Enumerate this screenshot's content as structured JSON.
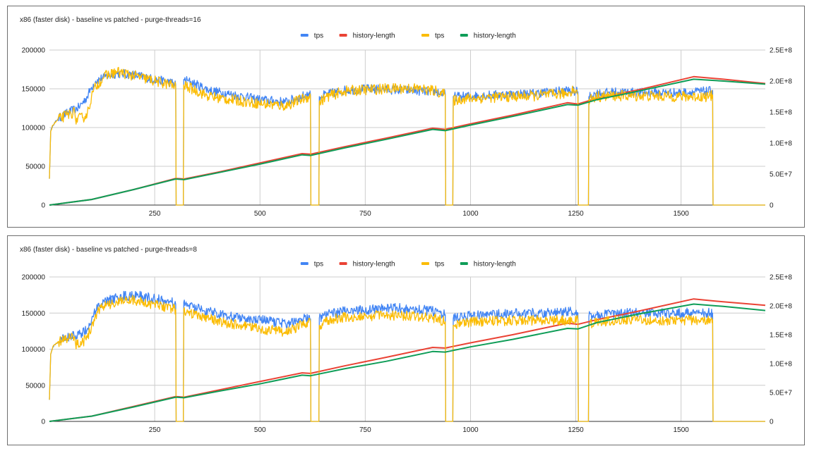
{
  "colors": {
    "tps_baseline": "#4285f4",
    "history_baseline": "#ea4335",
    "tps_patched": "#fbbc04",
    "history_patched": "#0f9d58",
    "grid": "#cccccc",
    "axis": "#333333",
    "text": "#222222"
  },
  "chart_data": [
    {
      "type": "line",
      "title": "x86 (faster disk) - baseline vs patched - purge-threads=16",
      "xlabel": "",
      "ylabel": "",
      "y2label": "",
      "xlim": [
        0,
        1700
      ],
      "ylim": [
        0,
        200000
      ],
      "y2lim": [
        0,
        250000000
      ],
      "x_ticks": [
        "250",
        "500",
        "750",
        "1000",
        "1250",
        "1500"
      ],
      "x_tick_values": [
        250,
        500,
        750,
        1000,
        1250,
        1500
      ],
      "y_ticks": [
        "0",
        "50000",
        "100000",
        "150000",
        "200000"
      ],
      "y_tick_values": [
        0,
        50000,
        100000,
        150000,
        200000
      ],
      "y2_ticks": [
        "0",
        "5.0E+7",
        "1.0E+8",
        "1.5E+8",
        "2.0E+8",
        "2.5E+8"
      ],
      "y2_tick_values": [
        0,
        50000000,
        100000000,
        150000000,
        200000000,
        250000000
      ],
      "grid": true,
      "legend": "top-center",
      "legend_entries": [
        "tps",
        "history-length",
        "tps",
        "history-length"
      ],
      "series": [
        {
          "name": "tps",
          "axis": "left",
          "color_key": "tps_baseline",
          "noise": 6000,
          "x": [
            0,
            3,
            8,
            20,
            40,
            70,
            90,
            100,
            110,
            130,
            160,
            200,
            250,
            290,
            300,
            301,
            318,
            319,
            330,
            380,
            430,
            500,
            560,
            615,
            620,
            621,
            640,
            641,
            660,
            700,
            760,
            800,
            860,
            920,
            940,
            941,
            958,
            959,
            980,
            1050,
            1150,
            1230,
            1255,
            1256,
            1280,
            1281,
            1300,
            1350,
            1400,
            1500,
            1570,
            1575,
            1576,
            1700
          ],
          "y": [
            34000,
            95000,
            103000,
            111000,
            118000,
            126000,
            140000,
            152000,
            160000,
            165000,
            170000,
            168000,
            162000,
            158000,
            155000,
            0,
            0,
            162000,
            160000,
            148000,
            143000,
            136000,
            133000,
            143000,
            142000,
            0,
            0,
            140000,
            143000,
            148000,
            150000,
            149000,
            148000,
            146000,
            143000,
            0,
            0,
            140000,
            140000,
            142000,
            144000,
            148000,
            146000,
            0,
            0,
            140000,
            144000,
            146000,
            145000,
            145000,
            147000,
            148000,
            0,
            0
          ]
        },
        {
          "name": "history-length",
          "axis": "right",
          "color_key": "history_baseline",
          "noise": 0,
          "x": [
            0,
            100,
            200,
            300,
            320,
            400,
            500,
            600,
            620,
            700,
            800,
            910,
            940,
            1000,
            1100,
            1230,
            1255,
            1300,
            1400,
            1530,
            1600,
            1700
          ],
          "y": [
            0,
            9000000,
            25000000,
            43000000,
            42000000,
            53000000,
            68000000,
            83000000,
            82000000,
            94000000,
            108000000,
            124000000,
            122000000,
            131000000,
            145000000,
            165000000,
            163000000,
            172000000,
            186000000,
            207000000,
            203000000,
            196000000
          ]
        },
        {
          "name": "tps",
          "axis": "left",
          "color_key": "tps_patched",
          "noise": 7000,
          "x": [
            0,
            3,
            8,
            20,
            40,
            60,
            62,
            80,
            90,
            100,
            110,
            130,
            160,
            200,
            250,
            290,
            300,
            301,
            318,
            319,
            330,
            380,
            430,
            500,
            560,
            615,
            620,
            621,
            640,
            641,
            660,
            700,
            760,
            800,
            860,
            920,
            940,
            941,
            958,
            959,
            980,
            1050,
            1150,
            1230,
            1245,
            1255,
            1256,
            1280,
            1281,
            1300,
            1350,
            1400,
            1500,
            1570,
            1575,
            1576,
            1700
          ],
          "y": [
            34000,
            95000,
            103000,
            110000,
            116000,
            120000,
            110000,
            113000,
            118000,
            140000,
            153000,
            166000,
            172000,
            167000,
            160000,
            155000,
            152000,
            0,
            0,
            155000,
            152000,
            140000,
            136000,
            131000,
            128000,
            140000,
            140000,
            0,
            0,
            133000,
            140000,
            147000,
            149000,
            150000,
            151000,
            147000,
            142000,
            0,
            0,
            135000,
            137000,
            139000,
            141000,
            144000,
            150000,
            142000,
            0,
            0,
            136000,
            140000,
            141000,
            141000,
            140000,
            140000,
            142000,
            0,
            0
          ]
        },
        {
          "name": "history-length",
          "axis": "right",
          "color_key": "history_patched",
          "noise": 0,
          "x": [
            0,
            100,
            200,
            300,
            320,
            400,
            500,
            600,
            620,
            700,
            800,
            910,
            940,
            1000,
            1100,
            1230,
            1255,
            1300,
            1400,
            1530,
            1600,
            1700
          ],
          "y": [
            0,
            9000000,
            25000000,
            42000000,
            41000000,
            52000000,
            66000000,
            81000000,
            80000000,
            92000000,
            106000000,
            122000000,
            120000000,
            129000000,
            143000000,
            162000000,
            161000000,
            170000000,
            184000000,
            203000000,
            200000000,
            195000000
          ]
        }
      ]
    },
    {
      "type": "line",
      "title": "x86 (faster disk) - baseline vs patched - purge-threads=8",
      "xlabel": "",
      "ylabel": "",
      "y2label": "",
      "xlim": [
        0,
        1700
      ],
      "ylim": [
        0,
        200000
      ],
      "y2lim": [
        0,
        250000000
      ],
      "x_ticks": [
        "250",
        "500",
        "750",
        "1000",
        "1250",
        "1500"
      ],
      "x_tick_values": [
        250,
        500,
        750,
        1000,
        1250,
        1500
      ],
      "y_ticks": [
        "0",
        "50000",
        "100000",
        "150000",
        "200000"
      ],
      "y_tick_values": [
        0,
        50000,
        100000,
        150000,
        200000
      ],
      "y2_ticks": [
        "0",
        "5.0E+7",
        "1.0E+8",
        "1.5E+8",
        "2.0E+8",
        "2.5E+8"
      ],
      "y2_tick_values": [
        0,
        50000000,
        100000000,
        150000000,
        200000000,
        250000000
      ],
      "grid": true,
      "legend": "top-center",
      "legend_entries": [
        "tps",
        "history-length",
        "tps",
        "history-length"
      ],
      "series": [
        {
          "name": "tps",
          "axis": "left",
          "color_key": "tps_baseline",
          "noise": 7000,
          "x": [
            0,
            3,
            8,
            20,
            40,
            70,
            90,
            100,
            110,
            130,
            160,
            200,
            250,
            290,
            300,
            301,
            318,
            319,
            330,
            380,
            430,
            500,
            560,
            615,
            620,
            621,
            640,
            641,
            660,
            700,
            760,
            800,
            860,
            920,
            940,
            941,
            958,
            959,
            980,
            1050,
            1150,
            1230,
            1255,
            1256,
            1280,
            1281,
            1300,
            1350,
            1400,
            1500,
            1570,
            1575,
            1576,
            1700
          ],
          "y": [
            30000,
            93000,
            103000,
            110000,
            116000,
            120000,
            128000,
            140000,
            153000,
            165000,
            172000,
            175000,
            170000,
            165000,
            162000,
            0,
            0,
            165000,
            160000,
            152000,
            146000,
            140000,
            136000,
            143000,
            142000,
            0,
            0,
            143000,
            148000,
            152000,
            155000,
            157000,
            156000,
            152000,
            148000,
            0,
            0,
            142000,
            145000,
            148000,
            150000,
            152000,
            150000,
            0,
            0,
            145000,
            148000,
            149000,
            150000,
            150000,
            150000,
            150000,
            0,
            0
          ]
        },
        {
          "name": "history-length",
          "axis": "right",
          "color_key": "history_baseline",
          "noise": 0,
          "x": [
            0,
            100,
            200,
            300,
            320,
            400,
            500,
            600,
            620,
            700,
            800,
            910,
            940,
            1000,
            1100,
            1230,
            1255,
            1300,
            1400,
            1530,
            1600,
            1700
          ],
          "y": [
            0,
            9000000,
            26000000,
            43000000,
            42000000,
            54000000,
            69000000,
            84000000,
            83000000,
            96000000,
            111000000,
            128000000,
            127000000,
            136000000,
            150000000,
            170000000,
            168000000,
            176000000,
            191000000,
            212000000,
            207000000,
            201000000
          ]
        },
        {
          "name": "tps",
          "axis": "left",
          "color_key": "tps_patched",
          "noise": 7000,
          "x": [
            0,
            3,
            8,
            20,
            40,
            60,
            62,
            80,
            90,
            100,
            110,
            130,
            160,
            200,
            250,
            290,
            300,
            301,
            318,
            319,
            330,
            380,
            430,
            500,
            560,
            615,
            620,
            621,
            640,
            641,
            660,
            700,
            760,
            800,
            860,
            920,
            940,
            941,
            958,
            959,
            980,
            1050,
            1150,
            1230,
            1255,
            1256,
            1280,
            1281,
            1300,
            1350,
            1400,
            1500,
            1570,
            1575,
            1576,
            1700
          ],
          "y": [
            30000,
            93000,
            103000,
            110000,
            114000,
            117000,
            107000,
            110000,
            116000,
            132000,
            148000,
            160000,
            165000,
            168000,
            162000,
            156000,
            155000,
            0,
            0,
            155000,
            150000,
            142000,
            135000,
            128000,
            124000,
            137000,
            137000,
            0,
            0,
            133000,
            140000,
            144000,
            146000,
            147000,
            146000,
            142000,
            138000,
            0,
            0,
            133000,
            137000,
            139000,
            140000,
            140000,
            140000,
            0,
            0,
            134000,
            138000,
            140000,
            140000,
            140000,
            141000,
            141000,
            0,
            0
          ]
        },
        {
          "name": "history-length",
          "axis": "right",
          "color_key": "history_patched",
          "noise": 0,
          "x": [
            0,
            100,
            200,
            300,
            320,
            400,
            500,
            600,
            620,
            700,
            800,
            910,
            940,
            1000,
            1100,
            1230,
            1255,
            1300,
            1400,
            1530,
            1600,
            1700
          ],
          "y": [
            0,
            9000000,
            25000000,
            42000000,
            41000000,
            52000000,
            65000000,
            80000000,
            79000000,
            91000000,
            104000000,
            121000000,
            120000000,
            129000000,
            142000000,
            161000000,
            160000000,
            171000000,
            186000000,
            203000000,
            199000000,
            192000000
          ]
        }
      ]
    }
  ]
}
